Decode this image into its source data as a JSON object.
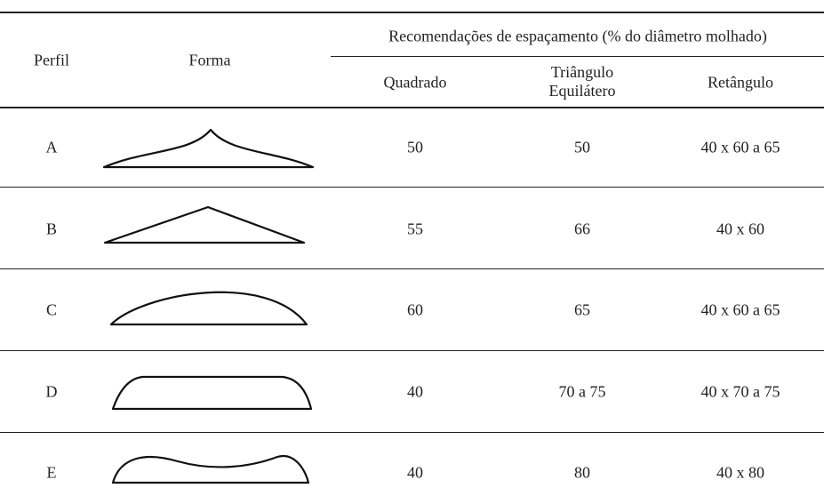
{
  "header": {
    "perfil": "Perfil",
    "forma": "Forma",
    "group": "Recomendações de espaçamento (% do diâmetro molhado)",
    "columns": [
      "Quadrado",
      "Triângulo Equilátero",
      "Retângulo"
    ]
  },
  "rows": [
    {
      "perfil": "A",
      "values": [
        "50",
        "50",
        "40 x 60 a 65"
      ]
    },
    {
      "perfil": "B",
      "values": [
        "55",
        "66",
        "40 x 60"
      ]
    },
    {
      "perfil": "C",
      "values": [
        "60",
        "65",
        "40 x 60 a 65"
      ]
    },
    {
      "perfil": "D",
      "values": [
        "40",
        "70 a 75",
        "40 x 70 a 75"
      ]
    },
    {
      "perfil": "E",
      "values": [
        "40",
        "80",
        "40 x 80"
      ]
    }
  ]
}
